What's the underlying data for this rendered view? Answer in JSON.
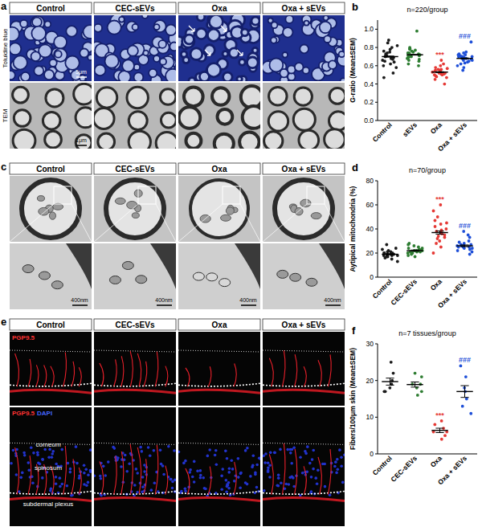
{
  "figure": {
    "panel_a": {
      "label": "a",
      "columns": [
        "Control",
        "CEC-sEVs",
        "Oxa",
        "Oxa + sEVs"
      ],
      "rows": [
        "Toluidine blue",
        "TEM"
      ],
      "scale_bars": [
        "5μm",
        "1μm"
      ]
    },
    "panel_c": {
      "label": "c",
      "columns": [
        "Control",
        "CEC-sEVs",
        "Oxa",
        "Oxa + sEVs"
      ],
      "scale_bar": "400nm"
    },
    "panel_e": {
      "label": "e",
      "columns": [
        "Control",
        "CEC-sEVs",
        "Oxa",
        "Oxa + sEVs"
      ],
      "stain_top": [
        "PGP9.5"
      ],
      "stain_bottom": [
        "PGP9.5",
        "DAPI"
      ],
      "layers": [
        "corneum",
        "spinosum",
        "subdermal plexus"
      ]
    }
  },
  "chart_data": [
    {
      "type": "dot_plot",
      "panel": "b",
      "title": "n=220/group",
      "y_label": "G-ratio (Mean±SEM)",
      "categories": [
        "Control",
        "sEVs",
        "Oxa",
        "Oxa + sEVs"
      ],
      "colors": [
        "#1a1a1a",
        "#2e7d32",
        "#e53935",
        "#1e4fd8"
      ],
      "points": [
        [
          0.7,
          0.72,
          0.68,
          0.75,
          0.62,
          0.8,
          0.85,
          0.58,
          0.66,
          0.73,
          0.69,
          0.78,
          0.47,
          0.64,
          0.71,
          0.88,
          0.6,
          0.74,
          0.67,
          0.76,
          0.52,
          0.7,
          0.82,
          0.65
        ],
        [
          0.72,
          0.74,
          0.7,
          0.76,
          0.68,
          0.79,
          0.65,
          0.73,
          0.71,
          0.77,
          0.66,
          0.98,
          0.69,
          0.75,
          0.62,
          0.72,
          0.8,
          0.7,
          0.74,
          0.67,
          0.78,
          0.71,
          0.73,
          0.6
        ],
        [
          0.53,
          0.5,
          0.55,
          0.48,
          0.57,
          0.52,
          0.6,
          0.45,
          0.54,
          0.51,
          0.58,
          0.4,
          0.53,
          0.56,
          0.49,
          0.62,
          0.52,
          0.55,
          0.47,
          0.54,
          0.66,
          0.51,
          0.5,
          0.56
        ],
        [
          0.68,
          0.7,
          0.66,
          0.72,
          0.64,
          0.75,
          0.6,
          0.69,
          0.67,
          0.73,
          0.62,
          0.86,
          0.7,
          0.65,
          0.71,
          0.58,
          0.68,
          0.74,
          0.63,
          0.69,
          0.55,
          0.72,
          0.66,
          0.7
        ]
      ],
      "means": [
        0.7,
        0.72,
        0.53,
        0.68
      ],
      "sem": [
        0.006,
        0.004,
        0.005,
        0.005
      ],
      "significance": [
        null,
        null,
        "***",
        "###"
      ],
      "ylim": [
        0,
        1.1
      ],
      "yticks": [
        {
          "value": 0,
          "label": "0.0"
        },
        0.2,
        0.4,
        0.6,
        0.8,
        {
          "value": 1,
          "label": "1.0"
        }
      ],
      "grid": false
    },
    {
      "type": "dot_plot",
      "panel": "d",
      "title": "n=70/group",
      "y_label": "Aytipical mitochondria (%)",
      "categories": [
        "Control",
        "CEC-sEVs",
        "Oxa",
        "Oxa + sEVs"
      ],
      "colors": [
        "#1a1a1a",
        "#2e7d32",
        "#e53935",
        "#1e4fd8"
      ],
      "points": [
        [
          19,
          18,
          20,
          17,
          22,
          15,
          24,
          19,
          21,
          16,
          20,
          18,
          27,
          13,
          19,
          23,
          17,
          20,
          18,
          21
        ],
        [
          22,
          21,
          23,
          20,
          25,
          19,
          27,
          22,
          24,
          18,
          21,
          23,
          28,
          17,
          22,
          26,
          20,
          22,
          21,
          24
        ],
        [
          37,
          40,
          33,
          45,
          28,
          50,
          36,
          55,
          30,
          42,
          38,
          25,
          60,
          34,
          47,
          39,
          20,
          44,
          32,
          35
        ],
        [
          26,
          25,
          27,
          24,
          30,
          22,
          33,
          26,
          28,
          21,
          25,
          35,
          19,
          27,
          24,
          29,
          26,
          23,
          38,
          25
        ]
      ],
      "means": [
        19,
        22,
        37,
        26
      ],
      "sem": [
        0.5,
        0.5,
        1.3,
        0.7
      ],
      "significance": [
        null,
        null,
        "***",
        "###"
      ],
      "ylim": [
        0,
        80
      ],
      "yticks": [
        0,
        20,
        40,
        60,
        80
      ],
      "grid": false
    },
    {
      "type": "dot_plot",
      "panel": "f",
      "title": "n=7 tissues/group",
      "y_label": "Fibers/100μm skin (Mean±SEM)",
      "categories": [
        "Control",
        "CEC-sEVs",
        "Oxa",
        "Oxa + sEVs"
      ],
      "colors": [
        "#1a1a1a",
        "#2e7d32",
        "#e53935",
        "#1e4fd8"
      ],
      "points": [
        [
          25,
          22,
          20,
          18,
          19,
          17,
          17
        ],
        [
          22,
          21,
          19,
          18,
          19,
          17,
          16
        ],
        [
          9,
          8,
          7,
          6,
          6,
          5,
          4
        ],
        [
          24,
          21,
          18,
          17,
          15,
          13,
          11
        ]
      ],
      "means": [
        19.7,
        18.9,
        6.4,
        17.0
      ],
      "sem": [
        0.95,
        0.7,
        0.6,
        1.6
      ],
      "significance": [
        null,
        null,
        "***",
        "###"
      ],
      "ylim": [
        0,
        30
      ],
      "yticks": [
        0,
        10,
        20,
        30
      ],
      "grid": false
    }
  ]
}
